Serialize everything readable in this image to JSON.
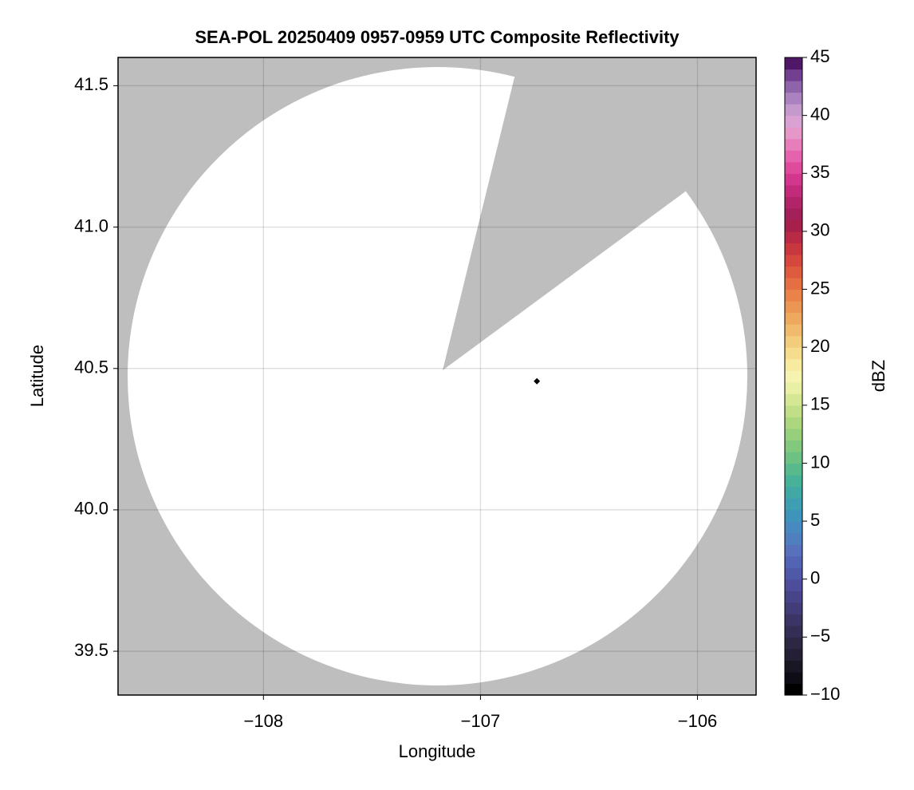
{
  "chart_data": {
    "type": "radar-map",
    "title": "SEA-POL 20250409 0957-0959 UTC Composite Reflectivity",
    "x_label": "Longitude",
    "y_label": "Latitude",
    "colorbar_label": "dBZ",
    "xlim": [
      -108.67,
      -105.73
    ],
    "ylim": [
      39.345,
      41.6
    ],
    "xticks": [
      {
        "value": -108,
        "label": "−108"
      },
      {
        "value": -107,
        "label": "−107"
      },
      {
        "value": -106,
        "label": "−106"
      }
    ],
    "yticks": [
      {
        "value": 39.5,
        "label": "39.5"
      },
      {
        "value": 40,
        "label": "40.0"
      },
      {
        "value": 40.5,
        "label": "40.5"
      },
      {
        "value": 41,
        "label": "41.0"
      },
      {
        "value": 41.5,
        "label": "41.5"
      }
    ],
    "grid": true,
    "marker": {
      "x": -106.74,
      "y": 40.455,
      "color": "#000000"
    },
    "colorbar": {
      "lim": [
        -10,
        45
      ],
      "ticks": [
        {
          "value": -10,
          "label": "−10"
        },
        {
          "value": -5,
          "label": "−5"
        },
        0,
        5,
        10,
        15,
        20,
        25,
        30,
        35,
        40,
        45
      ],
      "colors": [
        "#000000",
        "#0e0c14",
        "#1a1725",
        "#241f35",
        "#2d2744",
        "#342e55",
        "#3b3565",
        "#423c78",
        "#48448a",
        "#4d4d9b",
        "#5058a8",
        "#5464b5",
        "#5771bd",
        "#4f7fbf",
        "#4889bf",
        "#3f94bc",
        "#3e9fb2",
        "#40a9a6",
        "#48b299",
        "#58ba8c",
        "#6cc183",
        "#82c97e",
        "#97d07d",
        "#acd77f",
        "#c1df86",
        "#d6e794",
        "#e9f0a5",
        "#f6f3b0",
        "#f8eba0",
        "#f6dc8d",
        "#f3cc7c",
        "#f0bb6c",
        "#eea95e",
        "#ec9653",
        "#e9834a",
        "#e56f43",
        "#df5b40",
        "#d6483e",
        "#c9373e",
        "#b82a45",
        "#a6204b",
        "#a3205a",
        "#b12468",
        "#c12b7a",
        "#d2368d",
        "#e04a9d",
        "#e563ad",
        "#e77ebb",
        "#e597c8",
        "#d9a2d3",
        "#c49acd",
        "#aa82c0",
        "#8f63aa",
        "#723f91",
        "#4f1766"
      ]
    }
  }
}
